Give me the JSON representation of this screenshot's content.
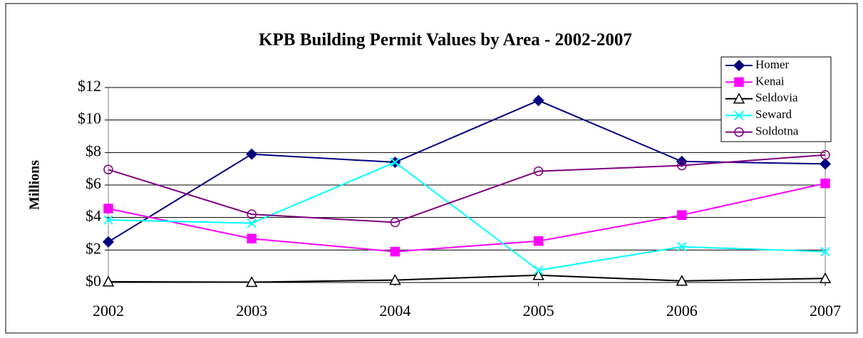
{
  "chart_data": {
    "type": "line",
    "title": "KPB Building Permit Values by Area - 2002-2007",
    "y_label": "Millions",
    "categories": [
      "2002",
      "2003",
      "2004",
      "2005",
      "2006",
      "2007"
    ],
    "series": [
      {
        "name": "Homer",
        "color": "#000080",
        "marker": "diamond",
        "values": [
          2.5,
          7.9,
          7.4,
          11.2,
          7.45,
          7.3
        ]
      },
      {
        "name": "Kenai",
        "color": "#ff00ff",
        "marker": "square",
        "values": [
          4.55,
          2.7,
          1.9,
          2.55,
          4.15,
          6.1
        ]
      },
      {
        "name": "Seldovia",
        "color": "#000000",
        "marker": "triangle",
        "values": [
          0.05,
          0.02,
          0.15,
          0.45,
          0.1,
          0.25
        ]
      },
      {
        "name": "Seward",
        "color": "#00ffff",
        "marker": "x",
        "values": [
          3.85,
          3.65,
          7.4,
          0.75,
          2.2,
          1.9
        ]
      },
      {
        "name": "Soldotna",
        "color": "#800080",
        "marker": "circle",
        "values": [
          6.95,
          4.2,
          3.7,
          6.85,
          7.2,
          7.85
        ]
      }
    ],
    "ylim": [
      0,
      12
    ],
    "yticks": [
      {
        "value": 0,
        "label": "$0"
      },
      {
        "value": 2,
        "label": "$2"
      },
      {
        "value": 4,
        "label": "$4"
      },
      {
        "value": 6,
        "label": "$6"
      },
      {
        "value": 8,
        "label": "$8"
      },
      {
        "value": 10,
        "label": "$10"
      },
      {
        "value": 12,
        "label": "$12"
      }
    ],
    "grid": true,
    "legend": "top-right"
  }
}
